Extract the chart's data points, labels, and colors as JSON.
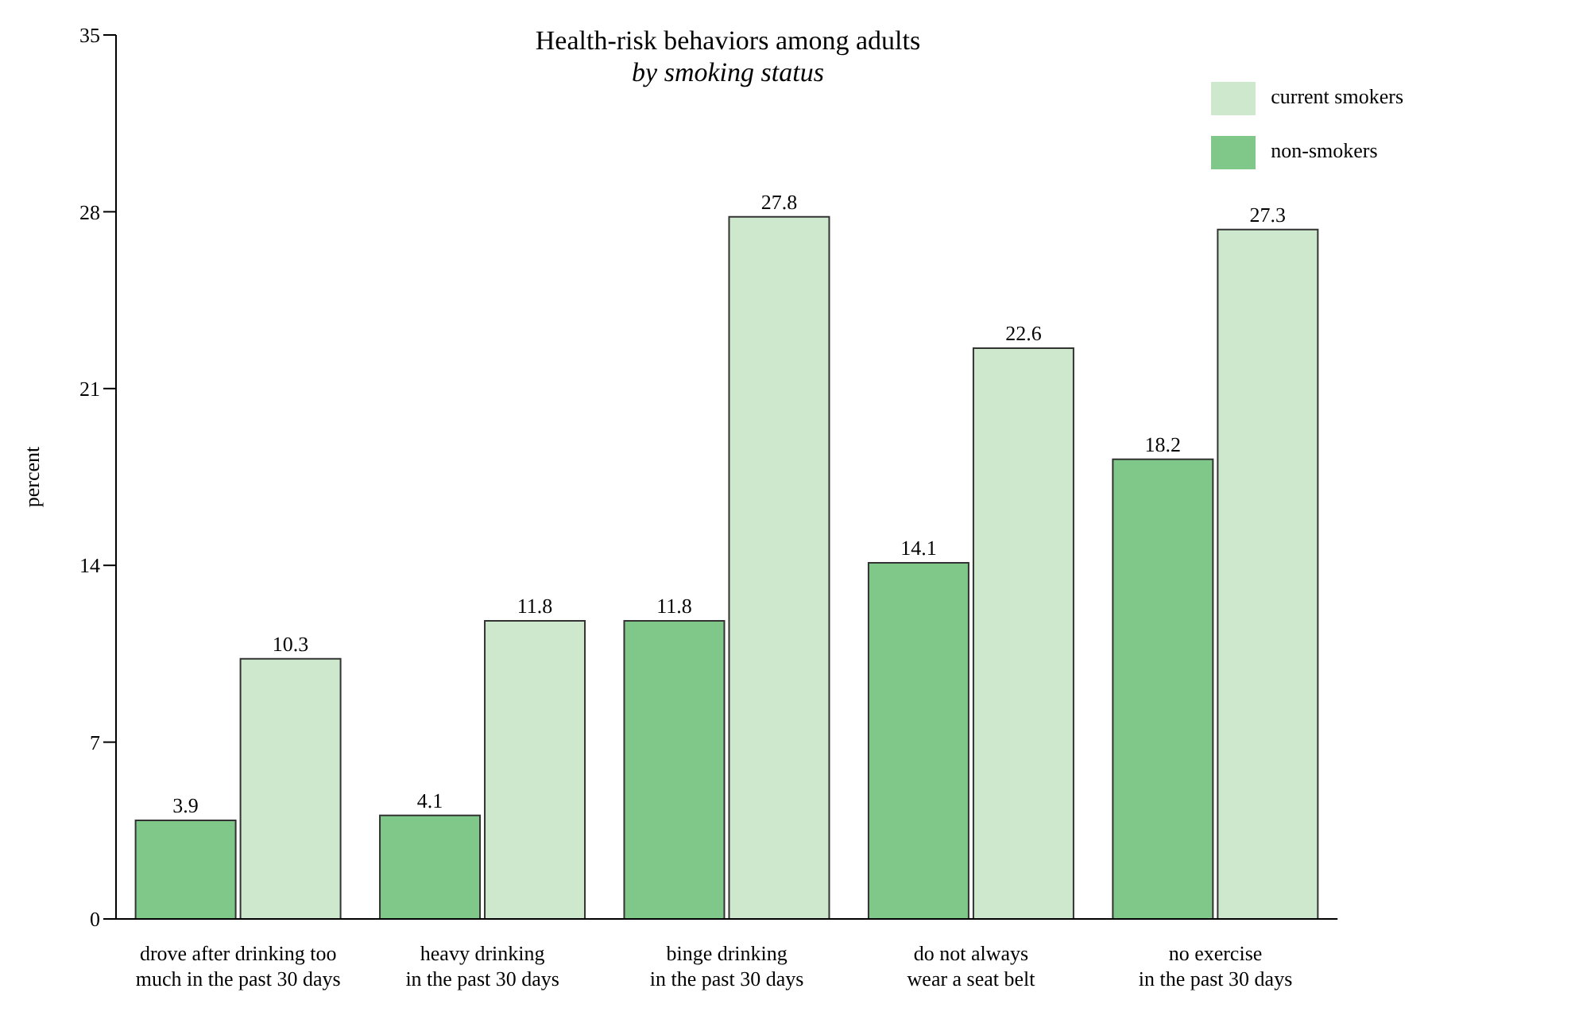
{
  "chart_data": {
    "type": "bar",
    "title": "Health-risk behaviors among adults",
    "subtitle": "by smoking status",
    "ylabel": "percent",
    "categories": [
      "drove after drinking too\nmuch in the past 30 days",
      "heavy drinking\nin the past 30 days",
      "binge drinking\nin the past 30 days",
      "do not always\nwear a seat belt",
      "no exercise\nin the past 30 days"
    ],
    "series": [
      {
        "name": "non-smokers",
        "color": "#80c88a",
        "values": [
          3.9,
          4.1,
          11.8,
          14.1,
          18.2
        ]
      },
      {
        "name": "current smokers",
        "color": "#cde8cc",
        "values": [
          10.3,
          11.8,
          27.8,
          22.6,
          27.3
        ]
      }
    ],
    "ylim": [
      0,
      35
    ],
    "yticks": [
      0,
      7,
      14,
      21,
      28,
      35
    ],
    "grid": false,
    "legend": "top right",
    "data_labels": true
  }
}
